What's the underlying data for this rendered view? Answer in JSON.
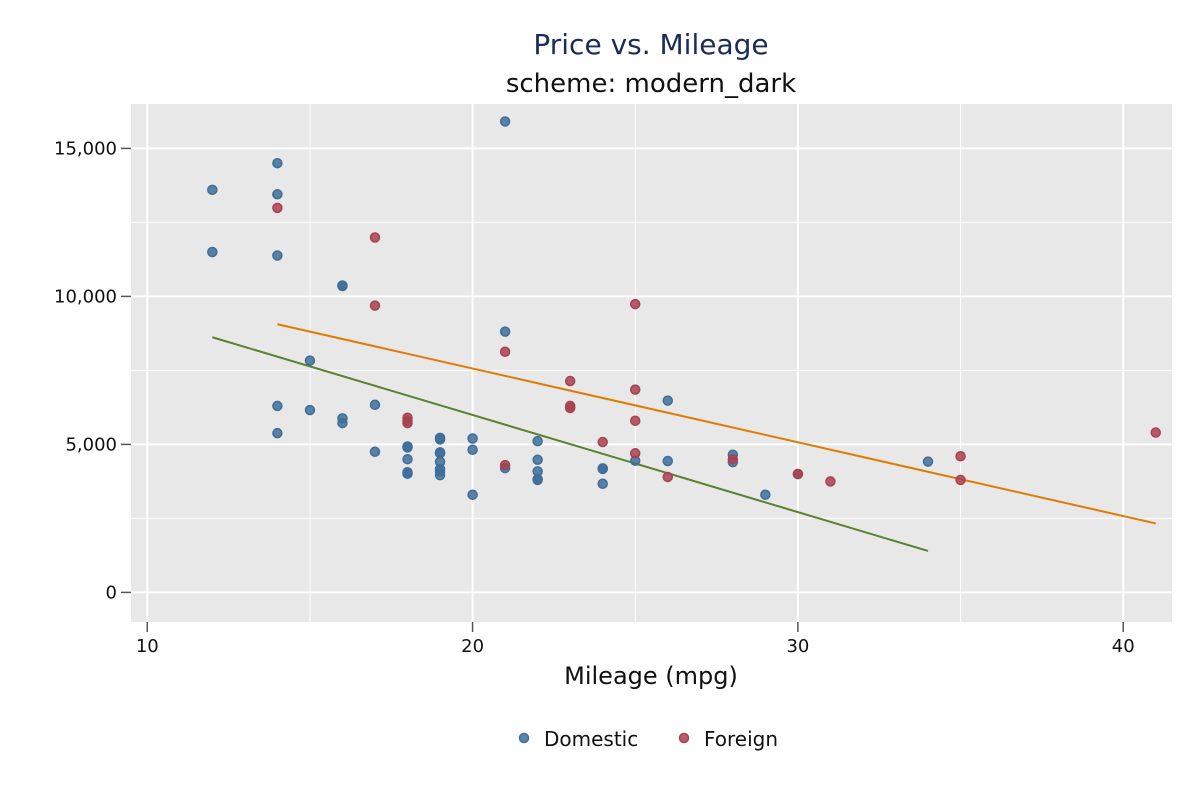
{
  "chart_data": {
    "type": "scatter",
    "title": "Price vs. Mileage",
    "subtitle": "scheme: modern_dark",
    "xlabel": "Mileage (mpg)",
    "ylabel": "",
    "xlim": [
      9.5,
      41.5
    ],
    "ylim": [
      -1000,
      16500
    ],
    "x_ticks": [
      10,
      20,
      30,
      40
    ],
    "x_tick_labels": [
      "10",
      "20",
      "30",
      "40"
    ],
    "y_ticks": [
      0,
      5000,
      10000,
      15000
    ],
    "y_tick_labels": [
      "0",
      "5,000",
      "10,000",
      "15,000"
    ],
    "grid": true,
    "legend_position": "bottom",
    "colors": {
      "plot_background": "#e8e8e8",
      "grid": "#ffffff",
      "title": "#1a2d5a",
      "Domestic": "#3e6e99",
      "Foreign": "#a8424f",
      "Domestic_fit": "#5a8032",
      "Foreign_fit": "#e07b00"
    },
    "series": [
      {
        "name": "Domestic",
        "points": [
          [
            12,
            13600
          ],
          [
            12,
            11500
          ],
          [
            14,
            14500
          ],
          [
            14,
            13450
          ],
          [
            14,
            11380
          ],
          [
            14,
            6300
          ],
          [
            14,
            5380
          ],
          [
            15,
            7830
          ],
          [
            15,
            6160
          ],
          [
            16,
            10370
          ],
          [
            16,
            10350
          ],
          [
            16,
            5880
          ],
          [
            16,
            5720
          ],
          [
            17,
            6340
          ],
          [
            17,
            4750
          ],
          [
            18,
            4930
          ],
          [
            18,
            4900
          ],
          [
            18,
            4500
          ],
          [
            18,
            4060
          ],
          [
            18,
            4010
          ],
          [
            19,
            5220
          ],
          [
            19,
            5170
          ],
          [
            19,
            4730
          ],
          [
            19,
            4700
          ],
          [
            19,
            4410
          ],
          [
            19,
            4170
          ],
          [
            19,
            4080
          ],
          [
            19,
            3960
          ],
          [
            20,
            5200
          ],
          [
            20,
            4820
          ],
          [
            20,
            3300
          ],
          [
            21,
            15910
          ],
          [
            21,
            8810
          ],
          [
            21,
            4200
          ],
          [
            22,
            5110
          ],
          [
            22,
            4480
          ],
          [
            22,
            4090
          ],
          [
            22,
            3830
          ],
          [
            22,
            3800
          ],
          [
            24,
            4190
          ],
          [
            24,
            4170
          ],
          [
            24,
            3670
          ],
          [
            25,
            4450
          ],
          [
            26,
            4440
          ],
          [
            26,
            6480
          ],
          [
            28,
            4650
          ],
          [
            28,
            4400
          ],
          [
            29,
            3300
          ],
          [
            30,
            4000
          ],
          [
            34,
            4420
          ]
        ]
      },
      {
        "name": "Foreign",
        "points": [
          [
            14,
            12990
          ],
          [
            17,
            11990
          ],
          [
            17,
            9690
          ],
          [
            18,
            5900
          ],
          [
            18,
            5800
          ],
          [
            18,
            5720
          ],
          [
            21,
            8130
          ],
          [
            21,
            4300
          ],
          [
            23,
            7140
          ],
          [
            23,
            6300
          ],
          [
            23,
            6230
          ],
          [
            24,
            5080
          ],
          [
            25,
            9740
          ],
          [
            25,
            6850
          ],
          [
            25,
            5800
          ],
          [
            25,
            4700
          ],
          [
            26,
            3900
          ],
          [
            28,
            4500
          ],
          [
            30,
            4000
          ],
          [
            31,
            3750
          ],
          [
            35,
            4600
          ],
          [
            35,
            3800
          ],
          [
            41,
            5400
          ]
        ]
      }
    ],
    "fit_lines": [
      {
        "series": "Domestic",
        "x": [
          12,
          34
        ],
        "y": [
          8620,
          1400
        ]
      },
      {
        "series": "Foreign",
        "x": [
          14,
          41
        ],
        "y": [
          9060,
          2330
        ]
      }
    ]
  }
}
